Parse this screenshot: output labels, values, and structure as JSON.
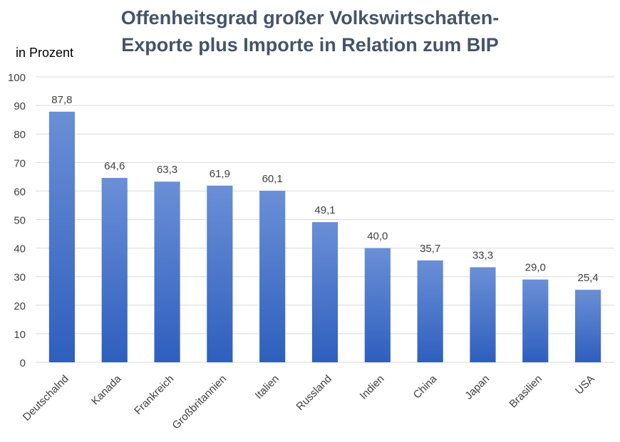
{
  "chart_data": {
    "type": "bar",
    "title_line1": "Offenheitsgrad großer Volkswirtschaften-",
    "title_line2": "Exporte plus Importe in Relation zum BIP",
    "ylabel": "in Prozent",
    "xlabel": "",
    "ylim": [
      0,
      100
    ],
    "yticks": [
      "0",
      "10",
      "20",
      "30",
      "40",
      "50",
      "60",
      "70",
      "80",
      "90",
      "100"
    ],
    "grid": true,
    "categories": [
      "Deutschalnd",
      "Kanada",
      "Frankreich",
      "Großbritannien",
      "Italien",
      "Russland",
      "Indien",
      "China",
      "Japan",
      "Brasilien",
      "USA"
    ],
    "values": [
      87.8,
      64.6,
      63.3,
      61.9,
      60.1,
      49.1,
      40.0,
      35.7,
      33.3,
      29.0,
      25.4
    ],
    "value_labels": [
      "87,8",
      "64,6",
      "63,3",
      "61,9",
      "60,1",
      "49,1",
      "40,0",
      "35,7",
      "33,3",
      "29,0",
      "25,4"
    ],
    "colors": {
      "bar_top": "#6a8fd6",
      "bar_bottom": "#2e5fbe",
      "grid": "#d9d9d9",
      "title": "#44546a",
      "text": "#404040"
    }
  }
}
